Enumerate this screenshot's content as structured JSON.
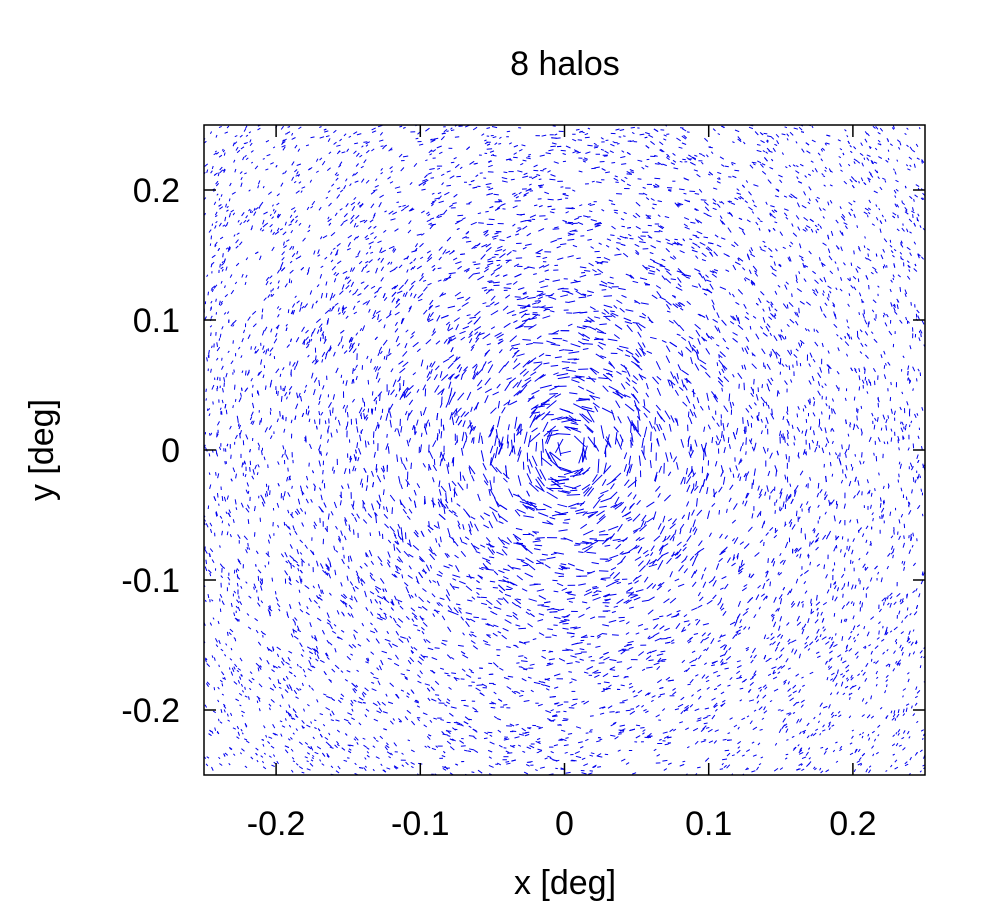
{
  "chart_data": {
    "type": "vector-field",
    "title": "8 halos",
    "xlabel": "x [deg]",
    "ylabel": "y [deg]",
    "xlim": [
      -0.25,
      0.25
    ],
    "ylim": [
      -0.25,
      0.25
    ],
    "x_ticks": [
      {
        "value": -0.2,
        "label": "-0.2"
      },
      {
        "value": -0.1,
        "label": "-0.1"
      },
      {
        "value": 0,
        "label": "0"
      },
      {
        "value": 0.1,
        "label": "0.1"
      },
      {
        "value": 0.2,
        "label": "0.2"
      }
    ],
    "y_ticks": [
      {
        "value": -0.2,
        "label": "-0.2"
      },
      {
        "value": -0.1,
        "label": "-0.1"
      },
      {
        "value": 0,
        "label": "0"
      },
      {
        "value": 0.1,
        "label": "0.1"
      },
      {
        "value": 0.2,
        "label": "0.2"
      }
    ],
    "field_center": [
      0.0,
      0.0
    ],
    "orientation": "tangential",
    "grid": false,
    "legend": "none",
    "colors": {
      "whiskers": "#0000ee",
      "axes": "#000000",
      "background": "#ffffff"
    }
  }
}
